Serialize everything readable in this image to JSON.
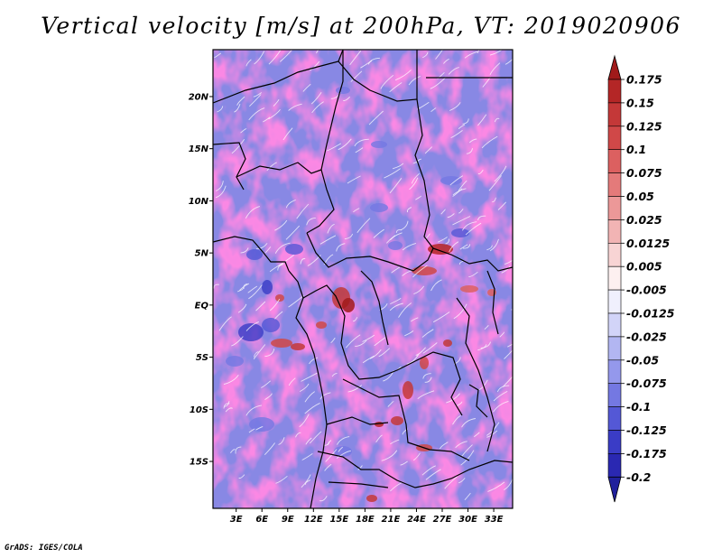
{
  "chart_data": {
    "type": "heatmap",
    "title": "Vertical velocity [m/s] at 200hPa, VT: 2019020906",
    "variable": "Vertical velocity",
    "units": "m/s",
    "level": "200hPa",
    "valid_time": "2019020906",
    "x_axis": {
      "ticks": [
        3,
        6,
        9,
        12,
        15,
        18,
        21,
        24,
        27,
        30,
        33
      ],
      "tick_labels": [
        "3E",
        "6E",
        "9E",
        "12E",
        "15E",
        "18E",
        "21E",
        "24E",
        "27E",
        "30E",
        "33E"
      ],
      "range": [
        0.3,
        35.2
      ],
      "units": "degrees east"
    },
    "y_axis": {
      "ticks": [
        20,
        15,
        10,
        5,
        0,
        -5,
        -10,
        -15
      ],
      "tick_labels": [
        "20N",
        "15N",
        "10N",
        "5N",
        "EQ",
        "5S",
        "10S",
        "15S"
      ],
      "range": [
        -19.5,
        24.5
      ],
      "units": "degrees north"
    },
    "colorbar": {
      "levels": [
        "0.175",
        "0.15",
        "0.125",
        "0.1",
        "0.075",
        "0.05",
        "0.025",
        "0.0125",
        "0.005",
        "-0.005",
        "-0.0125",
        "-0.025",
        "-0.05",
        "-0.075",
        "-0.1",
        "-0.125",
        "-0.175",
        "-0.2"
      ],
      "colors": [
        "#a01a1a",
        "#b42626",
        "#c43838",
        "#d04848",
        "#dc6060",
        "#e47a7a",
        "#ec9898",
        "#f2b4b4",
        "#f8d4d4",
        "#fdf0f0",
        "#f0f0fd",
        "#d2d4f8",
        "#b2b6f2",
        "#9498ec",
        "#7478e2",
        "#5458d6",
        "#3a3cc6",
        "#2a28b2",
        "#20209c"
      ],
      "orientation": "vertical",
      "position": "right"
    }
  },
  "credit": "GrADS: IGES/COLA",
  "colors": {
    "land_features": "#000000",
    "contour_white": "#ffffff"
  }
}
